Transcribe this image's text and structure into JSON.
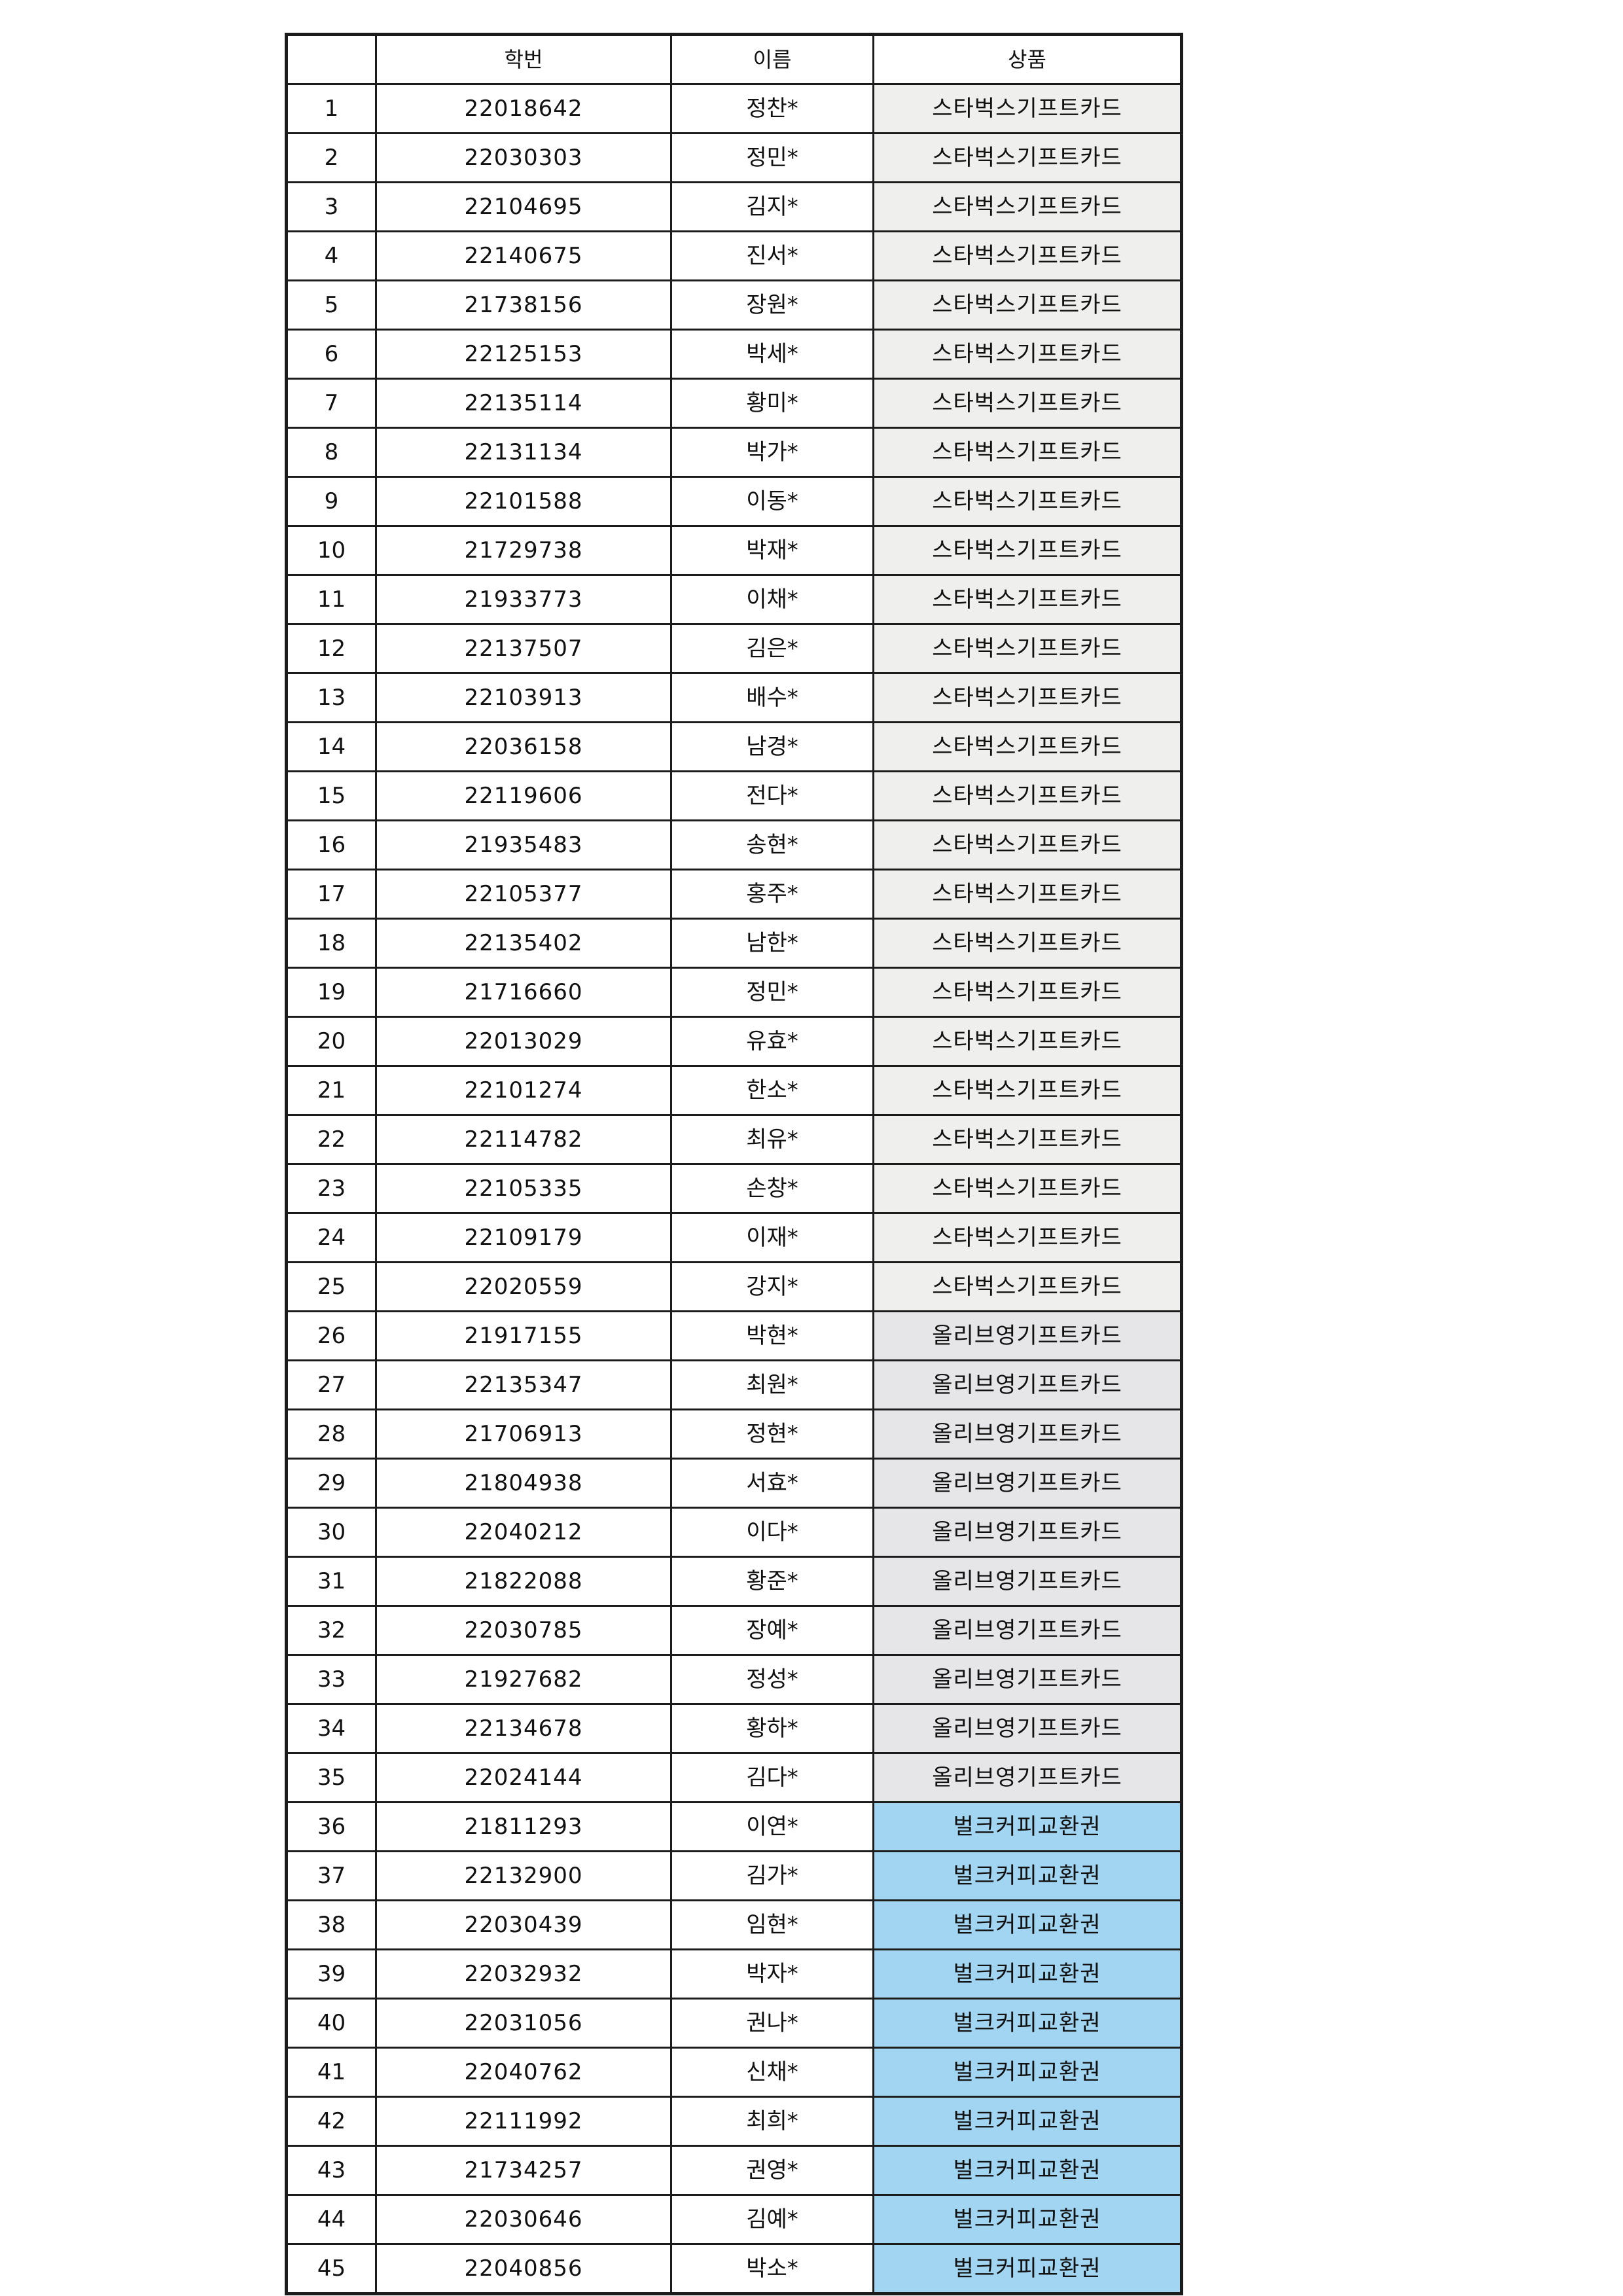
{
  "table": {
    "headers": [
      "",
      "학번",
      "이름",
      "상품"
    ],
    "prizes": [
      {
        "label": "스타벅스기프트카드",
        "color": "#efefed"
      },
      {
        "label": "올리브영기프트카드",
        "color": "#e6e6e8"
      },
      {
        "label": "벌크커피교환권",
        "color": "#a2d5f1"
      }
    ],
    "rows": [
      {
        "no": "1",
        "student_id": "22018642",
        "name": "정찬*",
        "prize": "스타벅스기프트카드"
      },
      {
        "no": "2",
        "student_id": "22030303",
        "name": "정민*",
        "prize": "스타벅스기프트카드"
      },
      {
        "no": "3",
        "student_id": "22104695",
        "name": "김지*",
        "prize": "스타벅스기프트카드"
      },
      {
        "no": "4",
        "student_id": "22140675",
        "name": "진서*",
        "prize": "스타벅스기프트카드"
      },
      {
        "no": "5",
        "student_id": "21738156",
        "name": "장원*",
        "prize": "스타벅스기프트카드"
      },
      {
        "no": "6",
        "student_id": "22125153",
        "name": "박세*",
        "prize": "스타벅스기프트카드"
      },
      {
        "no": "7",
        "student_id": "22135114",
        "name": "황미*",
        "prize": "스타벅스기프트카드"
      },
      {
        "no": "8",
        "student_id": "22131134",
        "name": "박가*",
        "prize": "스타벅스기프트카드"
      },
      {
        "no": "9",
        "student_id": "22101588",
        "name": "이동*",
        "prize": "스타벅스기프트카드"
      },
      {
        "no": "10",
        "student_id": "21729738",
        "name": "박재*",
        "prize": "스타벅스기프트카드"
      },
      {
        "no": "11",
        "student_id": "21933773",
        "name": "이채*",
        "prize": "스타벅스기프트카드"
      },
      {
        "no": "12",
        "student_id": "22137507",
        "name": "김은*",
        "prize": "스타벅스기프트카드"
      },
      {
        "no": "13",
        "student_id": "22103913",
        "name": "배수*",
        "prize": "스타벅스기프트카드"
      },
      {
        "no": "14",
        "student_id": "22036158",
        "name": "남경*",
        "prize": "스타벅스기프트카드"
      },
      {
        "no": "15",
        "student_id": "22119606",
        "name": "전다*",
        "prize": "스타벅스기프트카드"
      },
      {
        "no": "16",
        "student_id": "21935483",
        "name": "송현*",
        "prize": "스타벅스기프트카드"
      },
      {
        "no": "17",
        "student_id": "22105377",
        "name": "홍주*",
        "prize": "스타벅스기프트카드"
      },
      {
        "no": "18",
        "student_id": "22135402",
        "name": "남한*",
        "prize": "스타벅스기프트카드"
      },
      {
        "no": "19",
        "student_id": "21716660",
        "name": "정민*",
        "prize": "스타벅스기프트카드"
      },
      {
        "no": "20",
        "student_id": "22013029",
        "name": "유효*",
        "prize": "스타벅스기프트카드"
      },
      {
        "no": "21",
        "student_id": "22101274",
        "name": "한소*",
        "prize": "스타벅스기프트카드"
      },
      {
        "no": "22",
        "student_id": "22114782",
        "name": "최유*",
        "prize": "스타벅스기프트카드"
      },
      {
        "no": "23",
        "student_id": "22105335",
        "name": "손창*",
        "prize": "스타벅스기프트카드"
      },
      {
        "no": "24",
        "student_id": "22109179",
        "name": "이재*",
        "prize": "스타벅스기프트카드"
      },
      {
        "no": "25",
        "student_id": "22020559",
        "name": "강지*",
        "prize": "스타벅스기프트카드"
      },
      {
        "no": "26",
        "student_id": "21917155",
        "name": "박현*",
        "prize": "올리브영기프트카드"
      },
      {
        "no": "27",
        "student_id": "22135347",
        "name": "최원*",
        "prize": "올리브영기프트카드"
      },
      {
        "no": "28",
        "student_id": "21706913",
        "name": "정현*",
        "prize": "올리브영기프트카드"
      },
      {
        "no": "29",
        "student_id": "21804938",
        "name": "서효*",
        "prize": "올리브영기프트카드"
      },
      {
        "no": "30",
        "student_id": "22040212",
        "name": "이다*",
        "prize": "올리브영기프트카드"
      },
      {
        "no": "31",
        "student_id": "21822088",
        "name": "황준*",
        "prize": "올리브영기프트카드"
      },
      {
        "no": "32",
        "student_id": "22030785",
        "name": "장예*",
        "prize": "올리브영기프트카드"
      },
      {
        "no": "33",
        "student_id": "21927682",
        "name": "정성*",
        "prize": "올리브영기프트카드"
      },
      {
        "no": "34",
        "student_id": "22134678",
        "name": "황하*",
        "prize": "올리브영기프트카드"
      },
      {
        "no": "35",
        "student_id": "22024144",
        "name": "김다*",
        "prize": "올리브영기프트카드"
      },
      {
        "no": "36",
        "student_id": "21811293",
        "name": "이연*",
        "prize": "벌크커피교환권"
      },
      {
        "no": "37",
        "student_id": "22132900",
        "name": "김가*",
        "prize": "벌크커피교환권"
      },
      {
        "no": "38",
        "student_id": "22030439",
        "name": "임현*",
        "prize": "벌크커피교환권"
      },
      {
        "no": "39",
        "student_id": "22032932",
        "name": "박자*",
        "prize": "벌크커피교환권"
      },
      {
        "no": "40",
        "student_id": "22031056",
        "name": "권나*",
        "prize": "벌크커피교환권"
      },
      {
        "no": "41",
        "student_id": "22040762",
        "name": "신채*",
        "prize": "벌크커피교환권"
      },
      {
        "no": "42",
        "student_id": "22111992",
        "name": "최희*",
        "prize": "벌크커피교환권"
      },
      {
        "no": "43",
        "student_id": "21734257",
        "name": "권영*",
        "prize": "벌크커피교환권"
      },
      {
        "no": "44",
        "student_id": "22030646",
        "name": "김예*",
        "prize": "벌크커피교환권"
      },
      {
        "no": "45",
        "student_id": "22040856",
        "name": "박소*",
        "prize": "벌크커피교환권"
      }
    ]
  }
}
